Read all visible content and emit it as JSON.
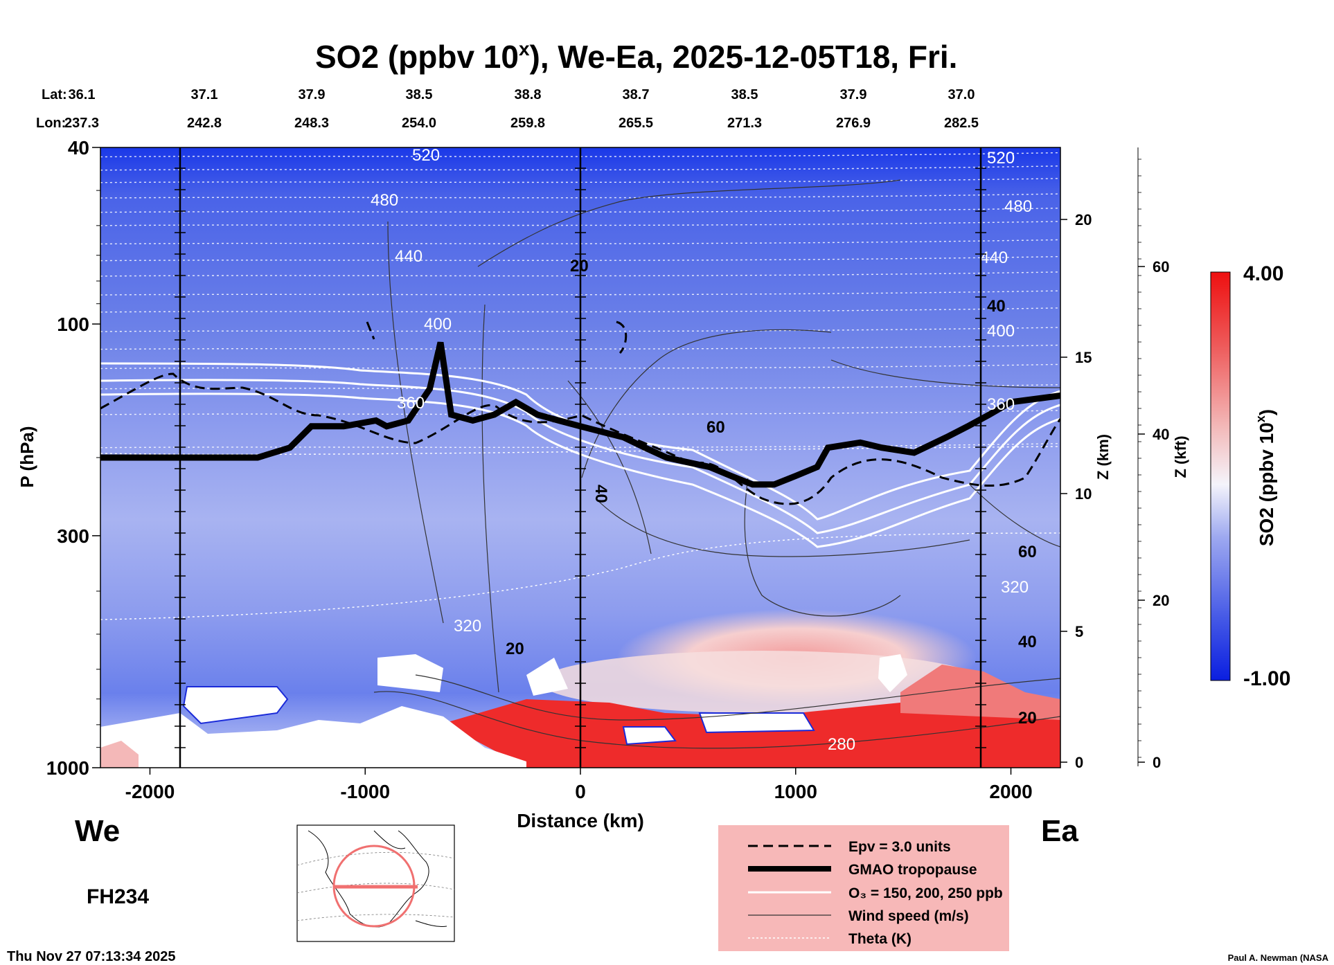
{
  "chart_data": {
    "type": "heatmap",
    "title_main": "SO2 (ppbv 10",
    "title_sup": "x",
    "title_rest": "), We-Ea, 2025-12-05T18, Fri.",
    "lat_label": "Lat:",
    "lon_label": "Lon:",
    "lats": [
      "36.1",
      "37.1",
      "37.9",
      "38.5",
      "38.8",
      "38.7",
      "38.5",
      "37.9",
      "37.0"
    ],
    "lons": [
      "237.3",
      "242.8",
      "248.3",
      "254.0",
      "259.8",
      "265.5",
      "271.3",
      "276.9",
      "282.5"
    ],
    "xlabel": "Distance (km)",
    "ylabel": "P (hPa)",
    "x_ticks": [
      -2000,
      -1000,
      0,
      1000,
      2000
    ],
    "x_tick_labels": [
      "-2000",
      "-1000",
      "0",
      "1000",
      "2000"
    ],
    "xlim": [
      -2230,
      2230
    ],
    "p_ticks": [
      40,
      100,
      300,
      1000
    ],
    "p_tick_labels": [
      "40",
      "100",
      "300",
      "1000"
    ],
    "ylim_hpa": [
      1000,
      40
    ],
    "z_km_label": "Z (km)",
    "z_km_ticks": [
      "0",
      "5",
      "10",
      "15",
      "20"
    ],
    "z_kft_label": "Z (kft)",
    "z_kft_ticks": [
      "0",
      "20",
      "40",
      "60"
    ],
    "colorbar_label": "SO2 (ppbv 10",
    "colorbar_sup": "x",
    "colorbar_max": "4.00",
    "colorbar_min": "-1.00",
    "theta_labels": [
      "520",
      "480",
      "440",
      "400",
      "360",
      "320",
      "280"
    ],
    "wind_labels": [
      "20",
      "40",
      "60"
    ],
    "left_label": "We",
    "right_label": "Ea",
    "forecast_hour": "FH234",
    "timestamp": "Thu Nov 27 07:13:34 2025",
    "credit": "Paul A. Newman (NASA",
    "legend": [
      "Epv = 3.0 units",
      "GMAO tropopause",
      "O₃ = 150, 200, 250 ppb",
      "Wind speed (m/s)",
      "Theta (K)"
    ],
    "tropopause_km": [
      -2230,
      200,
      -1500,
      200,
      -1350,
      190,
      -1250,
      170,
      -1100,
      170,
      -950,
      165,
      -900,
      170,
      -800,
      165,
      -700,
      140,
      -650,
      110,
      -600,
      160,
      -500,
      165,
      -400,
      160,
      -300,
      150,
      -200,
      160,
      -100,
      165,
      0,
      170,
      100,
      175,
      200,
      180,
      300,
      190,
      400,
      200,
      500,
      205,
      600,
      210,
      700,
      220,
      800,
      230,
      900,
      230,
      1000,
      220,
      1100,
      210,
      1150,
      190,
      1300,
      185,
      1400,
      190,
      1550,
      195,
      1700,
      180,
      1800,
      170,
      1900,
      160,
      2000,
      150,
      2230,
      145
    ],
    "theta_levels_hpa": [
      {
        "label": "520",
        "p": 40
      },
      {
        "label": "480",
        "p": 50
      },
      {
        "label": "440",
        "p": 66
      },
      {
        "label": "400",
        "p": 100
      },
      {
        "label": "360",
        "p": 160
      },
      {
        "label": "320",
        "p": 450
      },
      {
        "label": "280",
        "p": 900
      }
    ]
  }
}
